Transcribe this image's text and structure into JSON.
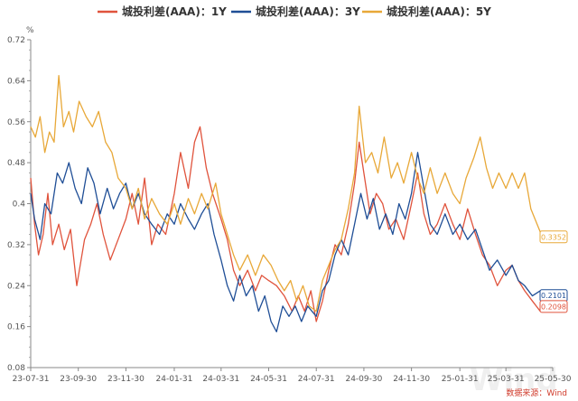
{
  "chart_data": {
    "type": "line",
    "unit": "%",
    "ylim": [
      0.08,
      0.72
    ],
    "yticks": [
      0.08,
      0.16,
      0.24,
      0.32,
      0.4,
      0.48,
      0.56,
      0.64,
      0.72
    ],
    "xlim": [
      "2023-07-31",
      "2025-05-30"
    ],
    "xticks": [
      "23-07-31",
      "23-09-30",
      "23-11-30",
      "24-01-31",
      "24-03-31",
      "24-05-31",
      "24-07-31",
      "24-09-30",
      "24-11-30",
      "25-01-31",
      "25-03-31",
      "25-05-30"
    ],
    "xtick_dates": [
      "2023-07-31",
      "2023-09-30",
      "2023-11-30",
      "2024-01-31",
      "2024-03-31",
      "2024-05-31",
      "2024-07-31",
      "2024-09-30",
      "2024-11-30",
      "2025-01-31",
      "2025-03-31",
      "2025-05-30"
    ],
    "grid": false,
    "legend_position": "top-center",
    "series": [
      {
        "name": "城投利差(AAA)：1Y",
        "color": "#e0533c",
        "end_label": "0.2098",
        "points": [
          [
            "2023-07-31",
            0.45
          ],
          [
            "2023-08-05",
            0.36
          ],
          [
            "2023-08-10",
            0.3
          ],
          [
            "2023-08-16",
            0.34
          ],
          [
            "2023-08-22",
            0.42
          ],
          [
            "2023-08-28",
            0.32
          ],
          [
            "2023-09-05",
            0.36
          ],
          [
            "2023-09-12",
            0.31
          ],
          [
            "2023-09-20",
            0.35
          ],
          [
            "2023-09-28",
            0.24
          ],
          [
            "2023-10-08",
            0.33
          ],
          [
            "2023-10-16",
            0.36
          ],
          [
            "2023-10-24",
            0.4
          ],
          [
            "2023-11-01",
            0.34
          ],
          [
            "2023-11-10",
            0.29
          ],
          [
            "2023-11-20",
            0.33
          ],
          [
            "2023-11-30",
            0.37
          ],
          [
            "2023-12-08",
            0.42
          ],
          [
            "2023-12-16",
            0.36
          ],
          [
            "2023-12-24",
            0.45
          ],
          [
            "2024-01-02",
            0.32
          ],
          [
            "2024-01-10",
            0.36
          ],
          [
            "2024-01-20",
            0.34
          ],
          [
            "2024-01-31",
            0.42
          ],
          [
            "2024-02-08",
            0.5
          ],
          [
            "2024-02-18",
            0.43
          ],
          [
            "2024-02-26",
            0.52
          ],
          [
            "2024-03-04",
            0.55
          ],
          [
            "2024-03-12",
            0.47
          ],
          [
            "2024-03-20",
            0.42
          ],
          [
            "2024-03-31",
            0.37
          ],
          [
            "2024-04-08",
            0.33
          ],
          [
            "2024-04-16",
            0.27
          ],
          [
            "2024-04-24",
            0.24
          ],
          [
            "2024-05-04",
            0.27
          ],
          [
            "2024-05-14",
            0.23
          ],
          [
            "2024-05-22",
            0.26
          ],
          [
            "2024-05-31",
            0.25
          ],
          [
            "2024-06-10",
            0.24
          ],
          [
            "2024-06-20",
            0.22
          ],
          [
            "2024-06-30",
            0.19
          ],
          [
            "2024-07-08",
            0.22
          ],
          [
            "2024-07-16",
            0.19
          ],
          [
            "2024-07-24",
            0.23
          ],
          [
            "2024-07-31",
            0.17
          ],
          [
            "2024-08-08",
            0.21
          ],
          [
            "2024-08-16",
            0.27
          ],
          [
            "2024-08-24",
            0.32
          ],
          [
            "2024-09-01",
            0.3
          ],
          [
            "2024-09-10",
            0.36
          ],
          [
            "2024-09-18",
            0.44
          ],
          [
            "2024-09-24",
            0.52
          ],
          [
            "2024-09-30",
            0.46
          ],
          [
            "2024-10-08",
            0.38
          ],
          [
            "2024-10-16",
            0.42
          ],
          [
            "2024-10-24",
            0.4
          ],
          [
            "2024-11-01",
            0.35
          ],
          [
            "2024-11-10",
            0.37
          ],
          [
            "2024-11-20",
            0.33
          ],
          [
            "2024-11-30",
            0.4
          ],
          [
            "2024-12-08",
            0.46
          ],
          [
            "2024-12-16",
            0.38
          ],
          [
            "2024-12-24",
            0.34
          ],
          [
            "2025-01-02",
            0.36
          ],
          [
            "2025-01-12",
            0.4
          ],
          [
            "2025-01-22",
            0.36
          ],
          [
            "2025-01-31",
            0.33
          ],
          [
            "2025-02-10",
            0.39
          ],
          [
            "2025-02-20",
            0.34
          ],
          [
            "2025-03-01",
            0.3
          ],
          [
            "2025-03-10",
            0.28
          ],
          [
            "2025-03-20",
            0.24
          ],
          [
            "2025-03-31",
            0.27
          ],
          [
            "2025-04-08",
            0.28
          ],
          [
            "2025-04-16",
            0.25
          ],
          [
            "2025-04-24",
            0.23
          ],
          [
            "2025-05-04",
            0.21
          ],
          [
            "2025-05-14",
            0.19
          ],
          [
            "2025-05-22",
            0.2
          ],
          [
            "2025-05-30",
            0.2098
          ]
        ]
      },
      {
        "name": "城投利差(AAA)：3Y",
        "color": "#1f4e96",
        "end_label": "0.2101",
        "points": [
          [
            "2023-07-31",
            0.42
          ],
          [
            "2023-08-05",
            0.37
          ],
          [
            "2023-08-12",
            0.33
          ],
          [
            "2023-08-18",
            0.4
          ],
          [
            "2023-08-26",
            0.38
          ],
          [
            "2023-09-03",
            0.46
          ],
          [
            "2023-09-10",
            0.44
          ],
          [
            "2023-09-18",
            0.48
          ],
          [
            "2023-09-26",
            0.43
          ],
          [
            "2023-10-04",
            0.4
          ],
          [
            "2023-10-12",
            0.47
          ],
          [
            "2023-10-20",
            0.44
          ],
          [
            "2023-10-28",
            0.38
          ],
          [
            "2023-11-06",
            0.43
          ],
          [
            "2023-11-14",
            0.39
          ],
          [
            "2023-11-22",
            0.42
          ],
          [
            "2023-11-30",
            0.44
          ],
          [
            "2023-12-08",
            0.39
          ],
          [
            "2023-12-16",
            0.42
          ],
          [
            "2023-12-24",
            0.38
          ],
          [
            "2024-01-02",
            0.36
          ],
          [
            "2024-01-12",
            0.34
          ],
          [
            "2024-01-22",
            0.38
          ],
          [
            "2024-01-31",
            0.36
          ],
          [
            "2024-02-08",
            0.4
          ],
          [
            "2024-02-18",
            0.37
          ],
          [
            "2024-02-26",
            0.35
          ],
          [
            "2024-03-06",
            0.38
          ],
          [
            "2024-03-14",
            0.4
          ],
          [
            "2024-03-22",
            0.34
          ],
          [
            "2024-03-31",
            0.29
          ],
          [
            "2024-04-08",
            0.24
          ],
          [
            "2024-04-16",
            0.21
          ],
          [
            "2024-04-24",
            0.26
          ],
          [
            "2024-05-02",
            0.22
          ],
          [
            "2024-05-10",
            0.24
          ],
          [
            "2024-05-18",
            0.19
          ],
          [
            "2024-05-26",
            0.22
          ],
          [
            "2024-06-03",
            0.17
          ],
          [
            "2024-06-10",
            0.15
          ],
          [
            "2024-06-18",
            0.2
          ],
          [
            "2024-06-26",
            0.18
          ],
          [
            "2024-07-04",
            0.2
          ],
          [
            "2024-07-12",
            0.17
          ],
          [
            "2024-07-20",
            0.2
          ],
          [
            "2024-07-31",
            0.18
          ],
          [
            "2024-08-08",
            0.23
          ],
          [
            "2024-08-16",
            0.25
          ],
          [
            "2024-08-24",
            0.3
          ],
          [
            "2024-09-01",
            0.33
          ],
          [
            "2024-09-10",
            0.3
          ],
          [
            "2024-09-18",
            0.36
          ],
          [
            "2024-09-26",
            0.42
          ],
          [
            "2024-10-04",
            0.37
          ],
          [
            "2024-10-12",
            0.41
          ],
          [
            "2024-10-20",
            0.35
          ],
          [
            "2024-10-28",
            0.38
          ],
          [
            "2024-11-06",
            0.34
          ],
          [
            "2024-11-14",
            0.4
          ],
          [
            "2024-11-22",
            0.37
          ],
          [
            "2024-11-30",
            0.42
          ],
          [
            "2024-12-08",
            0.5
          ],
          [
            "2024-12-16",
            0.43
          ],
          [
            "2024-12-24",
            0.36
          ],
          [
            "2025-01-02",
            0.34
          ],
          [
            "2025-01-12",
            0.38
          ],
          [
            "2025-01-22",
            0.34
          ],
          [
            "2025-01-31",
            0.36
          ],
          [
            "2025-02-10",
            0.33
          ],
          [
            "2025-02-20",
            0.35
          ],
          [
            "2025-03-01",
            0.31
          ],
          [
            "2025-03-10",
            0.27
          ],
          [
            "2025-03-20",
            0.29
          ],
          [
            "2025-03-31",
            0.26
          ],
          [
            "2025-04-08",
            0.28
          ],
          [
            "2025-04-16",
            0.25
          ],
          [
            "2025-04-24",
            0.24
          ],
          [
            "2025-05-04",
            0.22
          ],
          [
            "2025-05-14",
            0.23
          ],
          [
            "2025-05-22",
            0.21
          ],
          [
            "2025-05-30",
            0.2101
          ]
        ]
      },
      {
        "name": "城投利差(AAA)：5Y",
        "color": "#e8a838",
        "end_label": "0.3352",
        "points": [
          [
            "2023-07-31",
            0.55
          ],
          [
            "2023-08-06",
            0.53
          ],
          [
            "2023-08-12",
            0.57
          ],
          [
            "2023-08-18",
            0.5
          ],
          [
            "2023-08-24",
            0.54
          ],
          [
            "2023-08-30",
            0.52
          ],
          [
            "2023-09-05",
            0.65
          ],
          [
            "2023-09-11",
            0.55
          ],
          [
            "2023-09-18",
            0.58
          ],
          [
            "2023-09-24",
            0.54
          ],
          [
            "2023-10-01",
            0.6
          ],
          [
            "2023-10-10",
            0.57
          ],
          [
            "2023-10-18",
            0.55
          ],
          [
            "2023-10-26",
            0.58
          ],
          [
            "2023-11-04",
            0.52
          ],
          [
            "2023-11-12",
            0.5
          ],
          [
            "2023-11-20",
            0.45
          ],
          [
            "2023-11-30",
            0.43
          ],
          [
            "2023-12-08",
            0.39
          ],
          [
            "2023-12-16",
            0.43
          ],
          [
            "2023-12-24",
            0.37
          ],
          [
            "2024-01-02",
            0.41
          ],
          [
            "2024-01-12",
            0.38
          ],
          [
            "2024-01-22",
            0.36
          ],
          [
            "2024-01-31",
            0.4
          ],
          [
            "2024-02-08",
            0.36
          ],
          [
            "2024-02-18",
            0.41
          ],
          [
            "2024-02-26",
            0.38
          ],
          [
            "2024-03-06",
            0.42
          ],
          [
            "2024-03-14",
            0.39
          ],
          [
            "2024-03-24",
            0.44
          ],
          [
            "2024-03-31",
            0.38
          ],
          [
            "2024-04-08",
            0.34
          ],
          [
            "2024-04-16",
            0.3
          ],
          [
            "2024-04-24",
            0.27
          ],
          [
            "2024-05-04",
            0.3
          ],
          [
            "2024-05-14",
            0.26
          ],
          [
            "2024-05-24",
            0.3
          ],
          [
            "2024-06-03",
            0.28
          ],
          [
            "2024-06-12",
            0.25
          ],
          [
            "2024-06-20",
            0.23
          ],
          [
            "2024-06-28",
            0.25
          ],
          [
            "2024-07-06",
            0.21
          ],
          [
            "2024-07-14",
            0.24
          ],
          [
            "2024-07-22",
            0.2
          ],
          [
            "2024-07-31",
            0.19
          ],
          [
            "2024-08-08",
            0.25
          ],
          [
            "2024-08-16",
            0.28
          ],
          [
            "2024-08-24",
            0.31
          ],
          [
            "2024-09-01",
            0.33
          ],
          [
            "2024-09-10",
            0.39
          ],
          [
            "2024-09-18",
            0.46
          ],
          [
            "2024-09-24",
            0.59
          ],
          [
            "2024-10-02",
            0.48
          ],
          [
            "2024-10-10",
            0.5
          ],
          [
            "2024-10-18",
            0.46
          ],
          [
            "2024-10-26",
            0.53
          ],
          [
            "2024-11-04",
            0.45
          ],
          [
            "2024-11-12",
            0.48
          ],
          [
            "2024-11-20",
            0.44
          ],
          [
            "2024-11-30",
            0.5
          ],
          [
            "2024-12-08",
            0.45
          ],
          [
            "2024-12-16",
            0.42
          ],
          [
            "2024-12-24",
            0.47
          ],
          [
            "2025-01-02",
            0.42
          ],
          [
            "2025-01-12",
            0.46
          ],
          [
            "2025-01-22",
            0.42
          ],
          [
            "2025-01-31",
            0.4
          ],
          [
            "2025-02-08",
            0.45
          ],
          [
            "2025-02-18",
            0.49
          ],
          [
            "2025-02-26",
            0.53
          ],
          [
            "2025-03-06",
            0.47
          ],
          [
            "2025-03-14",
            0.43
          ],
          [
            "2025-03-22",
            0.46
          ],
          [
            "2025-03-31",
            0.43
          ],
          [
            "2025-04-08",
            0.46
          ],
          [
            "2025-04-16",
            0.43
          ],
          [
            "2025-04-24",
            0.46
          ],
          [
            "2025-05-02",
            0.39
          ],
          [
            "2025-05-10",
            0.36
          ],
          [
            "2025-05-18",
            0.33
          ],
          [
            "2025-05-30",
            0.3352
          ]
        ]
      }
    ],
    "source": "数据来源：Wind",
    "watermark": "Wind"
  }
}
